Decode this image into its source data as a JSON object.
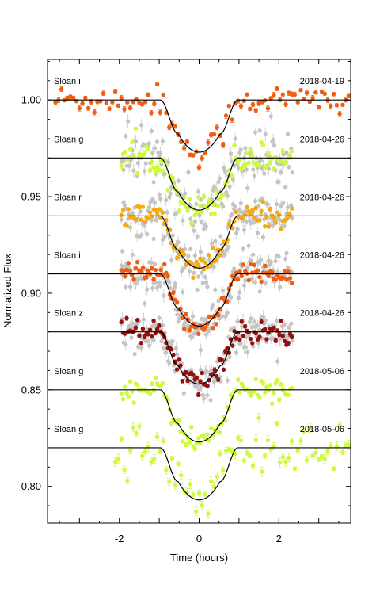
{
  "chart_data": {
    "type": "scatter",
    "title": "",
    "xlabel": "Time (hours)",
    "ylabel": "Normalized Flux",
    "xlim": [
      -3.8,
      3.8
    ],
    "ylim": [
      0.781,
      1.021
    ],
    "xticks": [
      -2,
      0,
      2
    ],
    "yticks": [
      0.8,
      0.85,
      0.9,
      0.95,
      1.0
    ],
    "xtick_labels": [
      "-2",
      "0",
      "2"
    ],
    "ytick_labels": [
      "0.80",
      "0.85",
      "0.90",
      "0.95",
      "1.00"
    ],
    "grid": false,
    "transit": {
      "mid_time": 0,
      "total_duration_hours": 1.95,
      "ingress_hours": 0.45,
      "depth": 0.027
    },
    "series": [
      {
        "filter": "Sloan i",
        "date": "2018-04-19",
        "baseline": 1.0,
        "color": "#ef5d13",
        "time_range": [
          -3.6,
          3.8
        ],
        "scatter": 0.004,
        "has_gray_background": false
      },
      {
        "filter": "Sloan g",
        "date": "2018-04-26",
        "baseline": 0.97,
        "color": "#ccfa3c",
        "time_range": [
          -1.95,
          2.35
        ],
        "scatter": 0.004,
        "has_gray_background": true
      },
      {
        "filter": "Sloan r",
        "date": "2018-04-26",
        "baseline": 0.94,
        "color": "#f5aa14",
        "time_range": [
          -1.95,
          2.35
        ],
        "scatter": 0.003,
        "has_gray_background": true
      },
      {
        "filter": "Sloan i",
        "date": "2018-04-26",
        "baseline": 0.91,
        "color": "#ef5d13",
        "time_range": [
          -1.95,
          2.35
        ],
        "scatter": 0.003,
        "has_gray_background": true
      },
      {
        "filter": "Sloan z",
        "date": "2018-04-26",
        "baseline": 0.88,
        "color": "#941010",
        "time_range": [
          -1.95,
          2.35
        ],
        "scatter": 0.003,
        "has_gray_background": true
      },
      {
        "filter": "Sloan g",
        "date": "2018-05-06",
        "baseline": 0.85,
        "color": "#ccfa3c",
        "time_range": [
          -1.95,
          2.35
        ],
        "scatter": 0.003,
        "has_gray_background": false
      },
      {
        "filter": "Sloan g",
        "date": "2018-05-06",
        "baseline": 0.82,
        "color": "#ccfa3c",
        "time_range": [
          -2.1,
          3.8
        ],
        "scatter": 0.007,
        "has_gray_background": false
      }
    ]
  }
}
